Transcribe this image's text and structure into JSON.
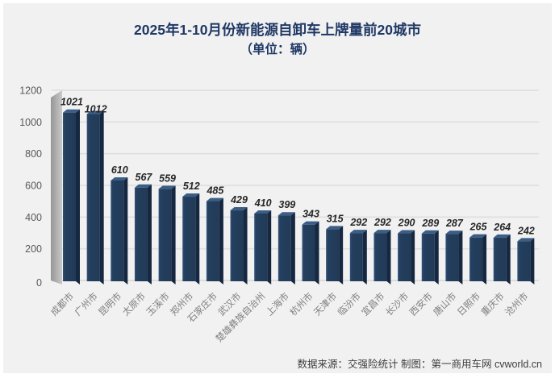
{
  "title": {
    "line1": "2025年1-10月份新能源自卸车上牌量前20城市",
    "line2": "（单位：辆）"
  },
  "footer": {
    "text": "数据来源：交强险统计 制图：第一商用车网 cvworld.cn"
  },
  "chart_data": {
    "type": "bar",
    "title": "2025年1-10月份新能源自卸车上牌量前20城市",
    "subtitle": "（单位：辆）",
    "unit": "辆",
    "categories": [
      "成都市",
      "广州市",
      "昆明市",
      "太原市",
      "玉溪市",
      "郑州市",
      "石家庄市",
      "武汉市",
      "楚雄彝族自治州",
      "上海市",
      "杭州市",
      "天津市",
      "临汾市",
      "宜昌市",
      "长沙市",
      "西安市",
      "唐山市",
      "日照市",
      "重庆市",
      "沧州市"
    ],
    "values": [
      1021,
      1012,
      610,
      567,
      559,
      512,
      485,
      429,
      410,
      399,
      343,
      315,
      292,
      292,
      290,
      289,
      287,
      265,
      264,
      242
    ],
    "xlabel": "",
    "ylabel": "",
    "ylim": [
      0,
      1200
    ],
    "yticks": [
      0,
      200,
      400,
      600,
      800,
      1000,
      1200
    ],
    "grid": true,
    "legend": false,
    "style": "3d-column",
    "colors": {
      "bar_front": "#24405f",
      "bar_front_light": "#35567d",
      "bar_front_dark": "#213a57",
      "bar_side": "#152840",
      "bar_top": "#3b5e86",
      "wall_dark": "#969696",
      "wall_light": "#c9c9c9",
      "background": "#f1f1f2",
      "title_color": "#1f3864",
      "gridline": "#dedede"
    }
  }
}
